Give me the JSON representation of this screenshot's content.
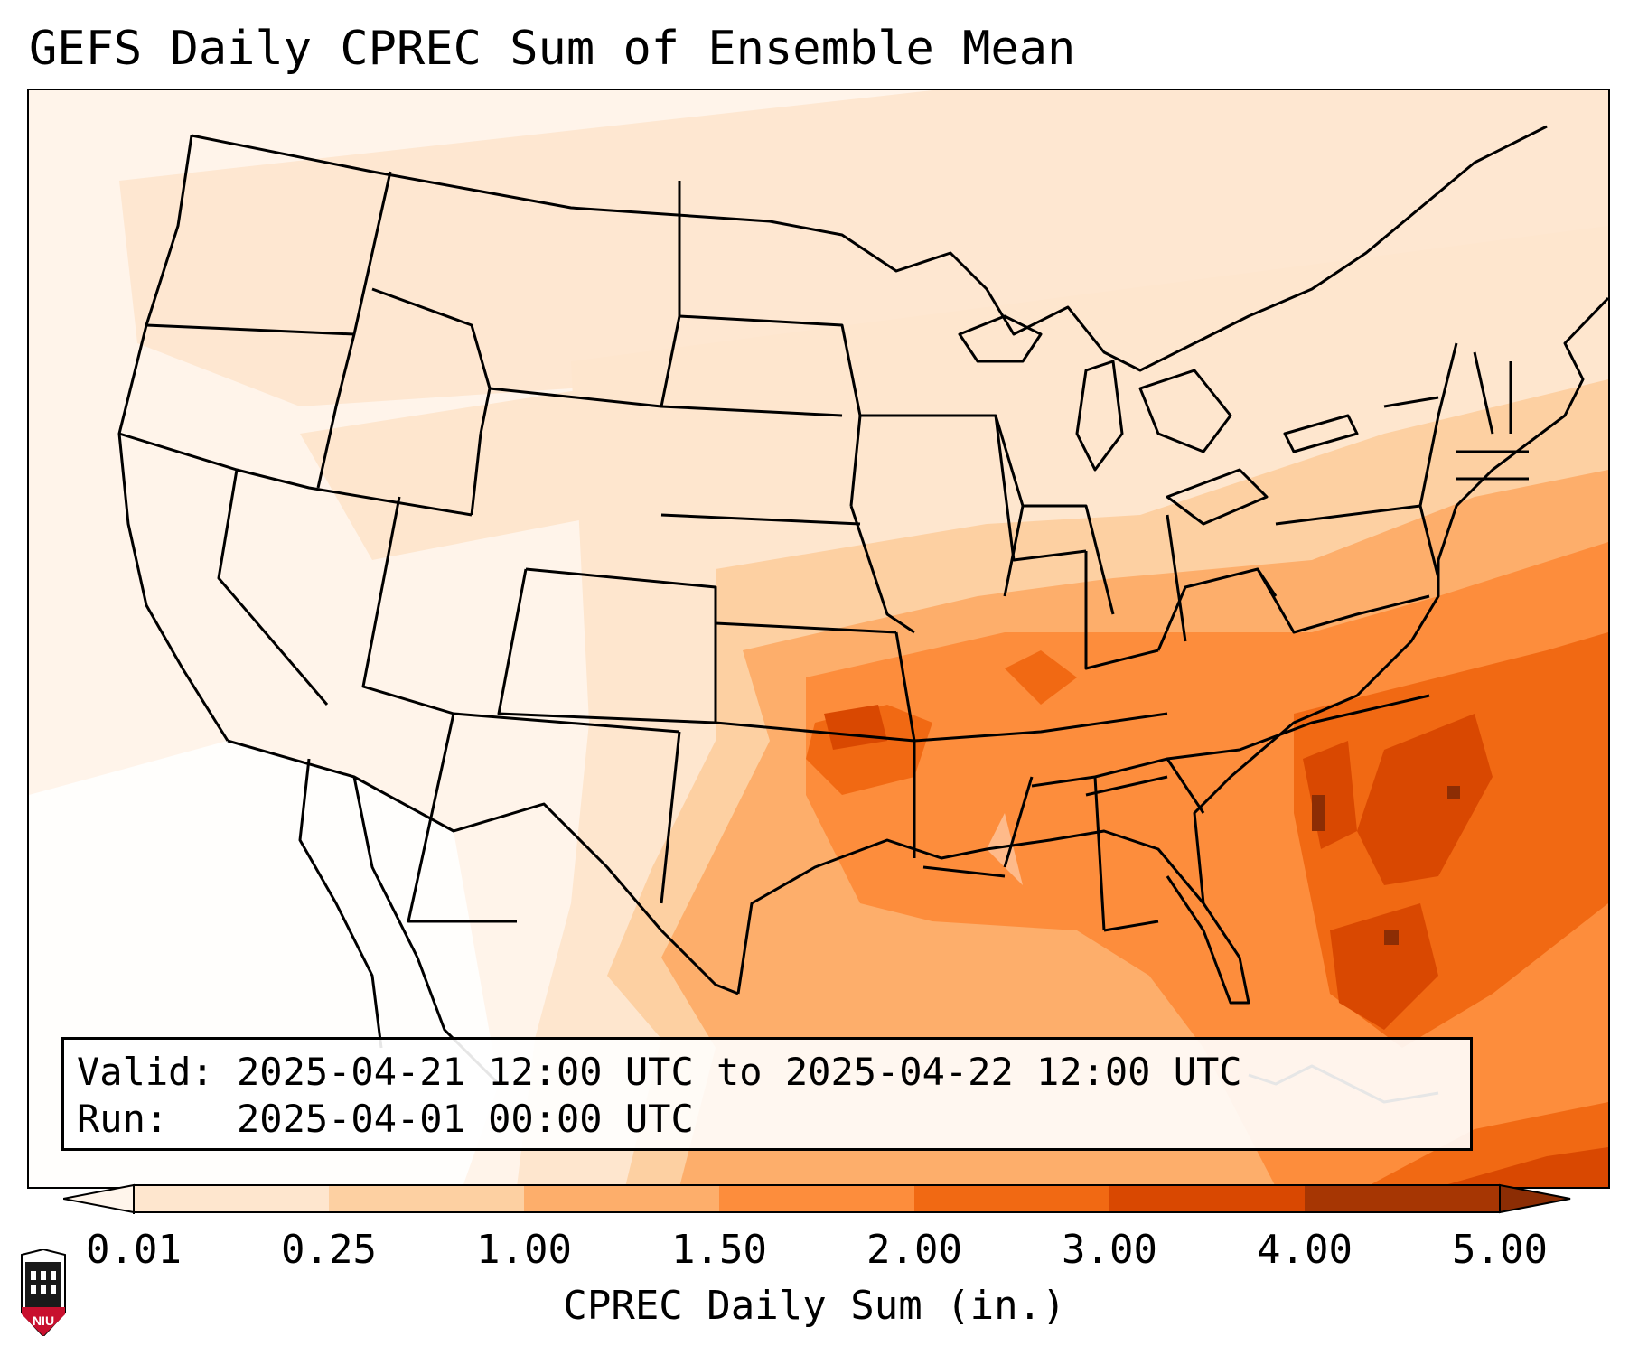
{
  "title": "GEFS Daily CPREC Sum of Ensemble Mean",
  "info": {
    "valid_line": "Valid: 2025-04-21 12:00 UTC to 2025-04-22 12:00 UTC",
    "run_line": "Run:   2025-04-01 00:00 UTC"
  },
  "colorbar": {
    "ticks": [
      "0.01",
      "0.25",
      "1.00",
      "1.50",
      "2.00",
      "3.00",
      "4.00",
      "5.00"
    ],
    "colors": [
      "#fff5eb",
      "#fee6ce",
      "#fdd0a2",
      "#fdae6b",
      "#fd8d3c",
      "#f16913",
      "#d94801",
      "#8c2d04"
    ],
    "label": "CPREC Daily Sum (in.)"
  },
  "logo": {
    "text": "NIU",
    "colors": {
      "shield": "#ffffff",
      "emblem": "#1a1a1a",
      "band": "#c8102e"
    }
  }
}
